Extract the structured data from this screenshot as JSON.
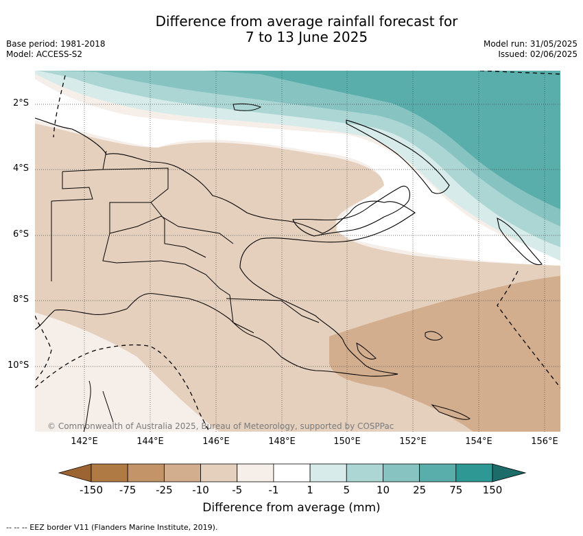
{
  "title_line1": "Difference from average rainfall forecast for",
  "title_line2": "7 to 13 June 2025",
  "base_period": "Base period: 1981-2018",
  "model": "Model: ACCESS-S2",
  "model_run": "Model run: 31/05/2025",
  "issued": "Issued: 02/06/2025",
  "copyright": "© Commonwealth of Australia 2025, Bureau of Meteorology, supported by COSPPac",
  "lat_labels": [
    "2°S",
    "4°S",
    "6°S",
    "8°S",
    "10°S"
  ],
  "lon_labels": [
    "142°E",
    "144°E",
    "146°E",
    "148°E",
    "150°E",
    "152°E",
    "154°E",
    "156°E"
  ],
  "colorbar": {
    "title": "Difference from average (mm)",
    "tick_labels": [
      "-150",
      "-75",
      "-25",
      "-10",
      "-5",
      "-1",
      "1",
      "5",
      "10",
      "25",
      "75",
      "150"
    ],
    "colors": [
      "#9c6432",
      "#b07a45",
      "#c39468",
      "#d3ae8e",
      "#e5d0be",
      "#f5eee9",
      "#ffffff",
      "#d6ebea",
      "#acd6d4",
      "#86c3c1",
      "#59aeab",
      "#2e9994",
      "#1c6d69"
    ]
  },
  "footer": "-- -- -- EEZ border V11 (Flanders Marine Institute, 2019)."
}
